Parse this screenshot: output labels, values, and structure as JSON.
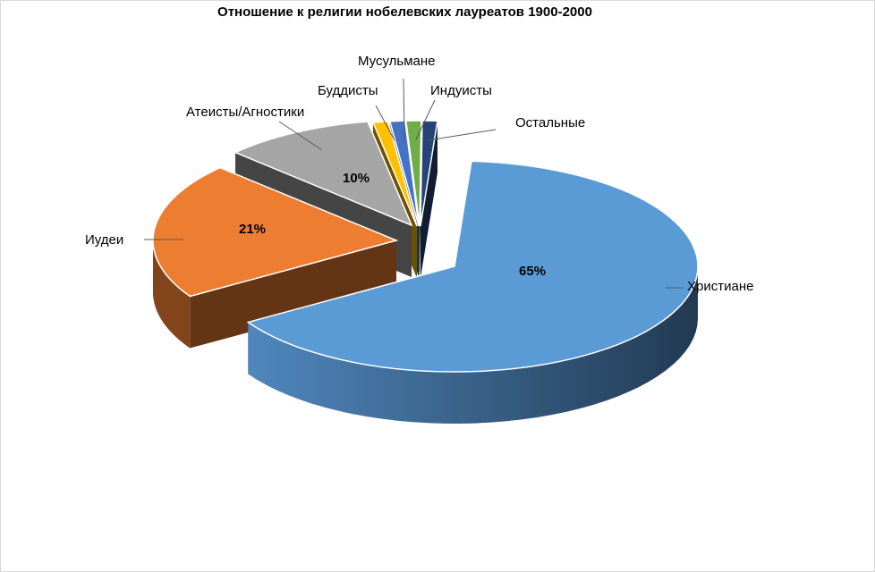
{
  "chart_data": {
    "type": "pie",
    "style": "3d exploded",
    "title": "Отношение к религии нобелевских лауреатов 1900-2000",
    "legend": "none",
    "slices": [
      {
        "name": "Христиане",
        "value": 65,
        "label": "65%",
        "color": "#5B9BD5"
      },
      {
        "name": "Иудеи",
        "value": 21,
        "label": "21%",
        "color": "#ED7D31"
      },
      {
        "name": "Атеисты/Агностики",
        "value": 10,
        "label": "10%",
        "color": "#A5A5A5"
      },
      {
        "name": "Буддисты",
        "value": 1,
        "label": "",
        "color": "#FFC000"
      },
      {
        "name": "Мусульмане",
        "value": 1,
        "label": "",
        "color": "#4472C4"
      },
      {
        "name": "Индуисты",
        "value": 1,
        "label": "",
        "color": "#70AD47"
      },
      {
        "name": "Остальные",
        "value": 1,
        "label": "",
        "color": "#264478"
      }
    ]
  }
}
